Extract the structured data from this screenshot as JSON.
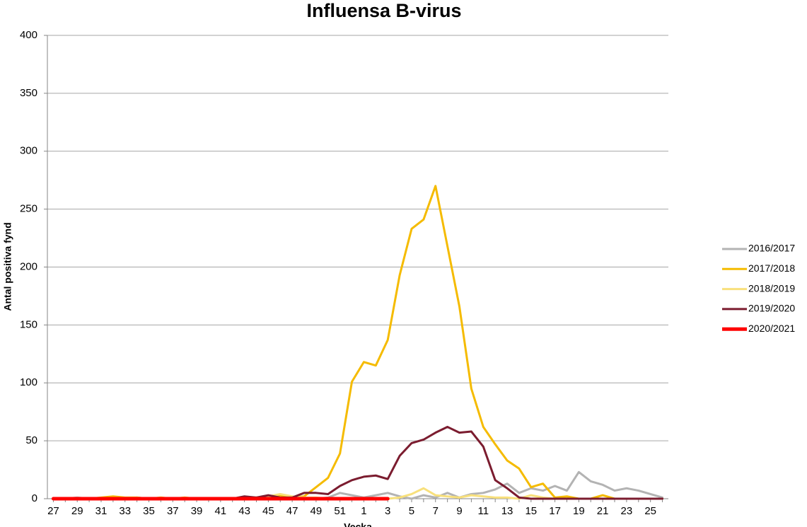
{
  "chart_data": {
    "type": "line",
    "title": "Influensa B-virus",
    "x_label": "Vecka",
    "y_label": "Antal positiva fynd",
    "categories": [
      "27",
      null,
      "29",
      null,
      "31",
      null,
      "33",
      null,
      "35",
      null,
      "37",
      null,
      "39",
      null,
      "41",
      null,
      "43",
      null,
      "45",
      null,
      "47",
      null,
      "49",
      null,
      "51",
      null,
      "1",
      null,
      "3",
      null,
      "5",
      null,
      "7",
      null,
      "9",
      null,
      "11",
      null,
      "13",
      null,
      "15",
      null,
      "17",
      null,
      "19",
      null,
      "21",
      null,
      "23",
      null,
      "25",
      null
    ],
    "ylim": [
      0,
      400
    ],
    "yticks": [
      0,
      50,
      100,
      150,
      200,
      250,
      300,
      350,
      400
    ],
    "grid": true,
    "legend": "right",
    "series": [
      {
        "name": "2016/2017",
        "color": "#b3b3b3",
        "values": [
          0,
          0,
          1,
          0,
          0,
          1,
          0,
          1,
          0,
          0,
          0,
          0,
          0,
          0,
          0,
          0,
          1,
          0,
          1,
          0,
          1,
          0,
          0,
          1,
          5,
          3,
          1,
          3,
          5,
          2,
          0,
          3,
          1,
          5,
          1,
          4,
          5,
          8,
          13,
          5,
          9,
          7,
          11,
          7,
          23,
          15,
          12,
          7,
          9,
          7,
          4,
          1
        ]
      },
      {
        "name": "2017/2018",
        "color": "#f5bb00",
        "values": [
          0,
          0,
          0,
          0,
          1,
          2,
          1,
          1,
          0,
          1,
          0,
          1,
          0,
          0,
          0,
          0,
          1,
          1,
          2,
          3,
          1,
          2,
          10,
          18,
          39,
          101,
          118,
          115,
          137,
          193,
          233,
          241,
          270,
          218,
          166,
          95,
          62,
          47,
          33,
          26,
          10,
          13,
          1,
          2,
          0,
          0,
          3,
          0,
          0,
          0,
          0,
          0
        ]
      },
      {
        "name": "2018/2019",
        "color": "#f8e07c",
        "values": [
          0,
          0,
          0,
          0,
          0,
          0,
          0,
          0,
          0,
          0,
          0,
          0,
          0,
          0,
          0,
          0,
          0,
          1,
          2,
          4,
          2,
          1,
          1,
          0,
          0,
          0,
          0,
          0,
          0,
          1,
          4,
          9,
          3,
          2,
          1,
          3,
          2,
          1,
          1,
          0,
          3,
          1,
          0,
          0,
          0,
          0,
          0,
          0,
          0,
          0,
          0,
          0
        ]
      },
      {
        "name": "2019/2020",
        "color": "#7b1c2f",
        "values": [
          0,
          0,
          0,
          0,
          0,
          0,
          0,
          0,
          0,
          0,
          0,
          0,
          0,
          0,
          0,
          0,
          2,
          1,
          3,
          1,
          1,
          5,
          5,
          4,
          11,
          16,
          19,
          20,
          17,
          37,
          48,
          51,
          57,
          62,
          57,
          58,
          45,
          16,
          9,
          1,
          0,
          0,
          0,
          0,
          0,
          0,
          0,
          0,
          0,
          0,
          0,
          0
        ]
      },
      {
        "name": "2020/2021",
        "color": "#ff0000",
        "values": [
          0,
          0,
          0,
          0,
          0,
          0,
          0,
          0,
          0,
          0,
          0,
          0,
          0,
          0,
          0,
          0,
          0,
          0,
          0,
          0,
          0,
          0,
          0,
          0,
          0,
          0,
          0,
          0,
          0,
          null,
          null,
          null,
          null,
          null,
          null,
          null,
          null,
          null,
          null,
          null,
          null,
          null,
          null,
          null,
          null,
          null,
          null,
          null,
          null,
          null,
          null,
          null
        ]
      }
    ]
  }
}
